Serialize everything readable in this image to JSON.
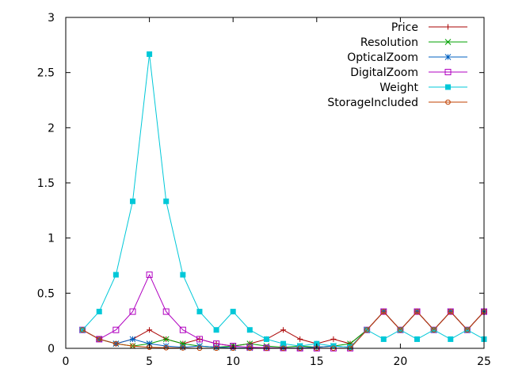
{
  "chart_data": {
    "type": "line",
    "title": "",
    "xlabel": "",
    "ylabel": "",
    "xlim": [
      0,
      25
    ],
    "ylim": [
      0,
      3
    ],
    "xticks": [
      0,
      5,
      10,
      15,
      20,
      25
    ],
    "yticks": [
      0,
      0.5,
      1,
      1.5,
      2,
      2.5,
      3
    ],
    "xtick_labels": [
      "0",
      "5",
      "10",
      "15",
      "20",
      "25"
    ],
    "ytick_labels": [
      "0",
      "0.5",
      "1",
      "1.5",
      "2",
      "2.5",
      "3"
    ],
    "grid": false,
    "legend_position": "top-right",
    "x": [
      1,
      2,
      3,
      4,
      5,
      6,
      7,
      8,
      9,
      10,
      11,
      12,
      13,
      14,
      15,
      16,
      17,
      18,
      19,
      20,
      21,
      22,
      23,
      24,
      25
    ],
    "series": [
      {
        "name": "Price",
        "color": "#aa0000",
        "marker": "plus",
        "values": [
          0.167,
          0.083,
          0.042,
          0.083,
          0.167,
          0.083,
          0.042,
          0.083,
          0.042,
          0.021,
          0.042,
          0.083,
          0.167,
          0.083,
          0.042,
          0.083,
          0.042,
          0.167,
          0.333,
          0.167,
          0.333,
          0.167,
          0.333,
          0.167,
          0.333
        ]
      },
      {
        "name": "Resolution",
        "color": "#00a000",
        "marker": "cross",
        "values": [
          0.167,
          0.083,
          0.042,
          0.021,
          0.042,
          0.083,
          0.042,
          0.021,
          0.01,
          0.021,
          0.042,
          0.021,
          0.01,
          0.021,
          0.01,
          0.021,
          0.042,
          0.167,
          0.333,
          0.167,
          0.333,
          0.167,
          0.333,
          0.167,
          0.333
        ]
      },
      {
        "name": "OpticalZoom",
        "color": "#0060c0",
        "marker": "star",
        "values": [
          0.167,
          0.083,
          0.042,
          0.083,
          0.042,
          0.021,
          0.01,
          0.021,
          0.01,
          0.005,
          0.003,
          0.005,
          0.003,
          0.005,
          0.01,
          0.021,
          0.01,
          0.167,
          0.333,
          0.167,
          0.333,
          0.167,
          0.333,
          0.167,
          0.333
        ]
      },
      {
        "name": "DigitalZoom",
        "color": "#b000c0",
        "marker": "square-open",
        "values": [
          0.167,
          0.083,
          0.167,
          0.333,
          0.667,
          0.333,
          0.167,
          0.083,
          0.042,
          0.021,
          0.01,
          0.005,
          0.003,
          0.001,
          0.001,
          0.001,
          0.001,
          0.167,
          0.333,
          0.167,
          0.333,
          0.167,
          0.333,
          0.167,
          0.333
        ]
      },
      {
        "name": "Weight",
        "color": "#00c8d8",
        "marker": "square-filled",
        "values": [
          0.167,
          0.333,
          0.667,
          1.333,
          2.667,
          1.333,
          0.667,
          0.333,
          0.167,
          0.333,
          0.167,
          0.083,
          0.042,
          0.021,
          0.042,
          0.021,
          0.01,
          0.167,
          0.083,
          0.167,
          0.083,
          0.167,
          0.083,
          0.167,
          0.083
        ]
      },
      {
        "name": "StorageIncluded",
        "color": "#c04000",
        "marker": "circle",
        "values": [
          0.167,
          0.083,
          0.042,
          0.021,
          0.01,
          0.005,
          0.003,
          0.001,
          0.001,
          0.001,
          0.001,
          0.001,
          0.001,
          0.001,
          0.001,
          0.001,
          0.001,
          0.167,
          0.333,
          0.167,
          0.333,
          0.167,
          0.333,
          0.167,
          0.333
        ]
      }
    ]
  }
}
